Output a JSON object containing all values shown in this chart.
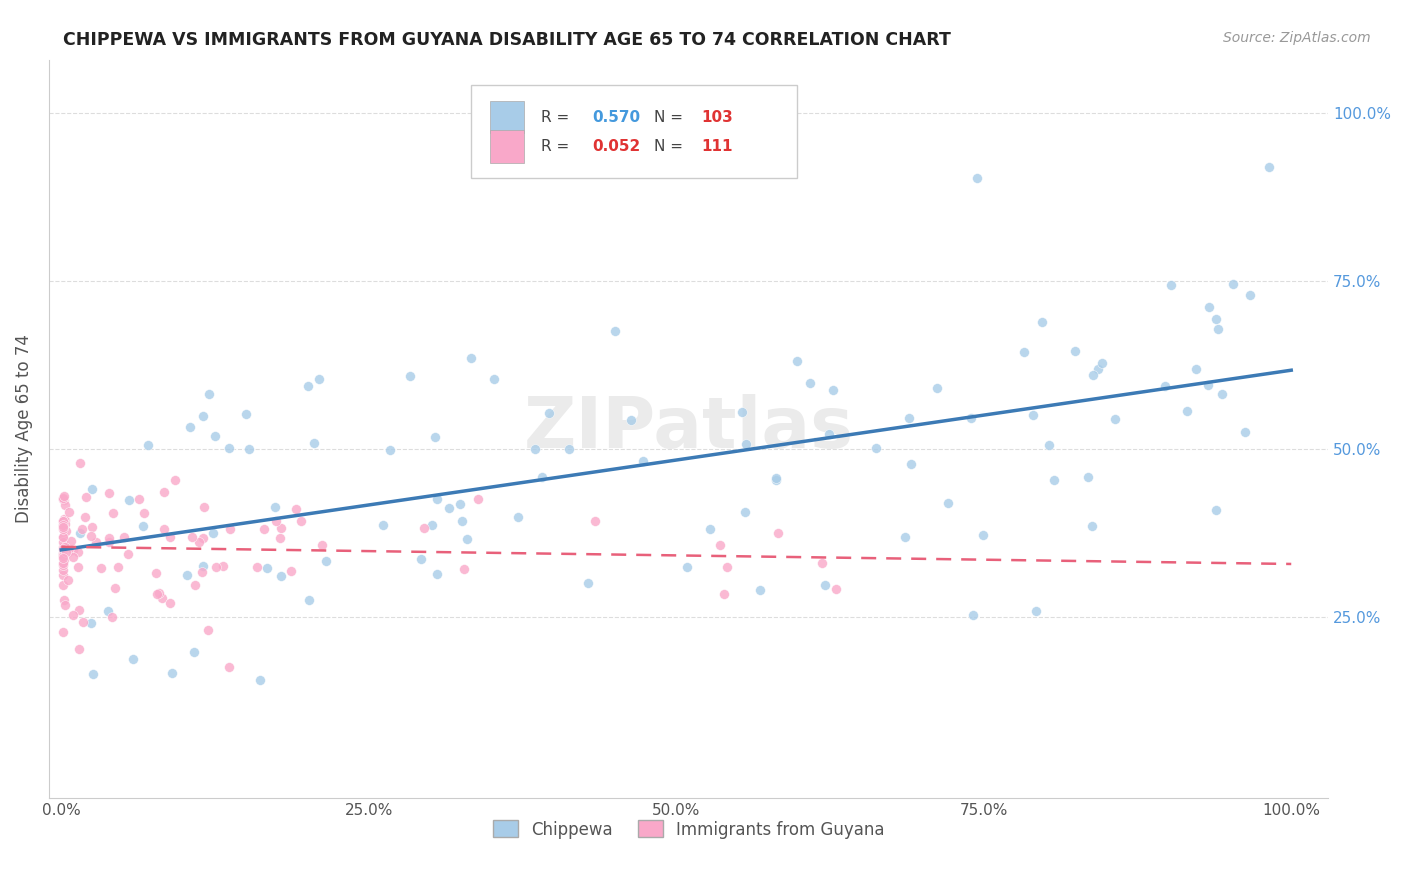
{
  "title": "CHIPPEWA VS IMMIGRANTS FROM GUYANA DISABILITY AGE 65 TO 74 CORRELATION CHART",
  "source": "Source: ZipAtlas.com",
  "ylabel": "Disability Age 65 to 74",
  "legend_label1": "Chippewa",
  "legend_label2": "Immigrants from Guyana",
  "r1": 0.57,
  "n1": 103,
  "r2": 0.052,
  "n2": 111,
  "color_blue": "#a8cce8",
  "color_pink": "#f9a8c9",
  "color_blue_line": "#3c7ab5",
  "color_pink_line": "#e8607a",
  "watermark": "ZIPatlas",
  "blue_trend_x0": 0.0,
  "blue_trend_y0": 0.34,
  "blue_trend_x1": 1.0,
  "blue_trend_y1": 0.65,
  "pink_trend_x0": 0.0,
  "pink_trend_y0": 0.335,
  "pink_trend_x1": 1.0,
  "pink_trend_y1": 0.365,
  "ymin": -0.02,
  "ymax": 1.08,
  "xmin": -0.01,
  "xmax": 1.03
}
